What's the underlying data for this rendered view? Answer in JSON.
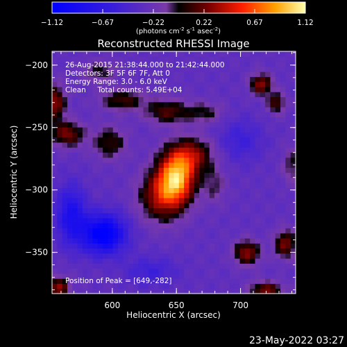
{
  "chart_data": {
    "type": "heatmap",
    "title": "Reconstructed RHESSI Image",
    "xlabel": "Heliocentric X (arcsec)",
    "ylabel": "Heliocentric Y (arcsec)",
    "xlim": [
      553,
      743
    ],
    "ylim": [
      -383,
      -189
    ],
    "x_ticks": [
      600,
      650,
      700
    ],
    "y_ticks": [
      -200,
      -250,
      -300,
      -350
    ],
    "colorbar": {
      "range": [
        -1.12,
        1.12
      ],
      "ticks": [
        "-1.12",
        "-0.67",
        "-0.22",
        "0.22",
        "0.67",
        "1.12"
      ],
      "label_main": "(photons cm",
      "label_exp1": "-2",
      "label_mid1": " s",
      "label_exp2": "-1",
      "label_mid2": " asec",
      "label_exp3": "-2",
      "label_end": ")"
    },
    "info_lines": [
      "26-Aug-2015 21:38:44.000 to 21:42:44.000",
      "Detectors: 3F 5F 6F 7F, Att 0",
      "Energy Range: 3.0 - 6.0 keV",
      "Clean     Total counts: 5.49E+04"
    ],
    "peak_label": "Position of Peak = [649,-282]",
    "peak": [
      649,
      -282
    ],
    "sources": [
      {
        "x": 650,
        "y": -290,
        "amp": 1.12,
        "sx": 10,
        "sy": 14
      },
      {
        "x": 638,
        "y": -305,
        "amp": 0.6,
        "sx": 12,
        "sy": 14
      },
      {
        "x": 662,
        "y": -272,
        "amp": 0.55,
        "sx": 12,
        "sy": 10
      },
      {
        "x": 593,
        "y": -335,
        "amp": -0.9,
        "sx": 12,
        "sy": 11
      },
      {
        "x": 568,
        "y": -320,
        "amp": -0.55,
        "sx": 8,
        "sy": 16
      },
      {
        "x": 598,
        "y": -262,
        "amp": 0.4,
        "sx": 9,
        "sy": 9
      },
      {
        "x": 608,
        "y": -228,
        "amp": 0.42,
        "sx": 12,
        "sy": 6
      },
      {
        "x": 643,
        "y": -237,
        "amp": 0.45,
        "sx": 12,
        "sy": 7
      },
      {
        "x": 672,
        "y": -238,
        "amp": 0.3,
        "sx": 10,
        "sy": 6
      },
      {
        "x": 680,
        "y": -296,
        "amp": 0.25,
        "sx": 6,
        "sy": 10
      },
      {
        "x": 555,
        "y": -230,
        "amp": 0.6,
        "sx": 6,
        "sy": 10
      },
      {
        "x": 565,
        "y": -255,
        "amp": 0.55,
        "sx": 9,
        "sy": 7
      },
      {
        "x": 590,
        "y": -205,
        "amp": 0.3,
        "sx": 9,
        "sy": 6
      },
      {
        "x": 716,
        "y": -215,
        "amp": 0.6,
        "sx": 6,
        "sy": 6
      },
      {
        "x": 728,
        "y": -230,
        "amp": 0.45,
        "sx": 5,
        "sy": 6
      },
      {
        "x": 705,
        "y": -350,
        "amp": 0.6,
        "sx": 7,
        "sy": 7
      },
      {
        "x": 735,
        "y": -343,
        "amp": 0.55,
        "sx": 6,
        "sy": 8
      },
      {
        "x": 558,
        "y": -378,
        "amp": 0.6,
        "sx": 6,
        "sy": 6
      },
      {
        "x": 720,
        "y": -380,
        "amp": 0.55,
        "sx": 9,
        "sy": 5
      },
      {
        "x": 740,
        "y": -280,
        "amp": 0.3,
        "sx": 5,
        "sy": 10
      },
      {
        "x": 700,
        "y": -260,
        "amp": -0.25,
        "sx": 12,
        "sy": 12
      },
      {
        "x": 630,
        "y": -365,
        "amp": -0.25,
        "sx": 14,
        "sy": 8
      }
    ]
  },
  "timestamp": "23-May-2022 03:27"
}
